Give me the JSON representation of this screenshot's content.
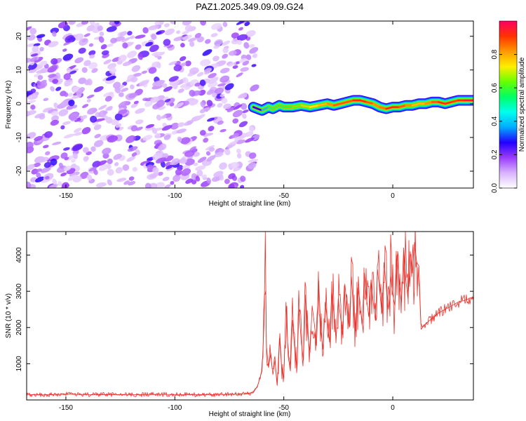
{
  "title": "PAZ1.2025.349.09.09.G24",
  "chart_data": [
    {
      "type": "heatmap",
      "title": "PAZ1.2025.349.09.09.G24",
      "xlabel": "Height of straight line (km)",
      "ylabel": "Frequency (Hz)",
      "xlim": [
        -168,
        37
      ],
      "ylim": [
        -25,
        24.5
      ],
      "xticks": [
        -150,
        -100,
        -50,
        0
      ],
      "xtick_labels": [
        "-150",
        "-100",
        "-50",
        "0"
      ],
      "yticks": [
        20,
        10,
        0,
        -10,
        -20
      ],
      "ytick_labels": [
        "20",
        "10",
        "0",
        "-10",
        "-20"
      ],
      "noise_region_x": [
        -168,
        -63
      ],
      "signal_track": {
        "x": [
          -64,
          -60,
          -57,
          -55,
          -52,
          -50,
          -46,
          -42,
          -38,
          -34,
          -30,
          -27,
          -24,
          -21,
          -18,
          -15,
          -12,
          -9,
          -6,
          -3,
          0,
          3,
          6,
          9,
          12,
          15,
          18,
          21,
          24,
          27,
          30,
          33,
          37
        ],
        "y": [
          -1,
          -2,
          -1,
          -1.5,
          -0.5,
          -1,
          -1,
          -0.5,
          -1,
          -0.5,
          0,
          -0.5,
          0,
          0.5,
          1,
          1,
          0.5,
          0,
          -1,
          -1.5,
          -1,
          -1,
          -0.5,
          -0.5,
          0,
          0,
          0.5,
          0.5,
          0,
          0.5,
          1,
          1,
          1
        ],
        "amplitude": [
          0.25,
          0.3,
          0.5,
          0.55,
          0.6,
          0.55,
          0.6,
          0.65,
          0.7,
          0.75,
          0.8,
          0.85,
          0.9,
          0.85,
          0.9,
          0.95,
          0.9,
          0.85,
          0.8,
          0.9,
          0.95,
          0.9,
          0.85,
          0.8,
          0.75,
          0.8,
          0.85,
          0.9,
          0.95,
          0.9,
          0.9,
          0.95,
          1.0
        ]
      },
      "colorbar": {
        "label": "Normalized spectral amplitude",
        "range": [
          0,
          1
        ],
        "ticks": [
          0.0,
          0.2,
          0.4,
          0.6,
          0.8
        ],
        "tick_labels": [
          "0.0",
          "0.2",
          "0.4",
          "0.6",
          "0.8"
        ],
        "colors": [
          "#ffffff",
          "#d9b3ff",
          "#9a3cff",
          "#2200ff",
          "#00aaff",
          "#00ffee",
          "#00ff66",
          "#66ff00",
          "#ffee00",
          "#ff9900",
          "#ff3300",
          "#ff0066"
        ]
      }
    },
    {
      "type": "line",
      "title": "",
      "xlabel": "Height of straight line (km)",
      "ylabel": "SNR (10 * v/v)",
      "xlim": [
        -168,
        37
      ],
      "ylim": [
        0,
        4650
      ],
      "xticks": [
        -150,
        -100,
        -50,
        0
      ],
      "xtick_labels": [
        "-150",
        "-100",
        "-50",
        "0"
      ],
      "yticks": [
        1000,
        2000,
        3000,
        4000
      ],
      "ytick_labels": [
        "1000",
        "2000",
        "3000",
        "4000"
      ],
      "color": "#e8312b",
      "series": [
        {
          "name": "SNR",
          "x": [
            -168,
            -160,
            -150,
            -140,
            -130,
            -120,
            -110,
            -100,
            -90,
            -80,
            -70,
            -64,
            -62,
            -60,
            -59,
            -58.5,
            -58,
            -57,
            -56,
            -55,
            -54,
            -53,
            -52,
            -51,
            -50,
            -49,
            -48,
            -47,
            -46,
            -45,
            -44,
            -43,
            -42,
            -41,
            -40,
            -39,
            -38,
            -37,
            -36,
            -35,
            -34,
            -33,
            -32,
            -31,
            -30,
            -29,
            -28,
            -27,
            -26,
            -25,
            -24,
            -23,
            -22,
            -21,
            -20,
            -19,
            -18,
            -17,
            -16,
            -15,
            -14,
            -13,
            -12,
            -11,
            -10,
            -9,
            -8,
            -7,
            -6,
            -5,
            -4,
            -3,
            -2,
            -1,
            0,
            1,
            2,
            3,
            4,
            5,
            6,
            7,
            8,
            9,
            10,
            11,
            12,
            13,
            15,
            18,
            21,
            24,
            27,
            30,
            33,
            37
          ],
          "y": [
            150,
            140,
            160,
            145,
            150,
            140,
            155,
            150,
            145,
            150,
            160,
            200,
            400,
            800,
            2200,
            4650,
            1500,
            900,
            1300,
            700,
            1100,
            400,
            1700,
            900,
            600,
            2700,
            1200,
            800,
            2200,
            1400,
            900,
            2500,
            1600,
            1100,
            2900,
            1800,
            1300,
            2600,
            2100,
            1500,
            3300,
            1900,
            1400,
            2700,
            2200,
            1600,
            3000,
            2400,
            1700,
            2800,
            2300,
            1800,
            3200,
            2600,
            2000,
            3400,
            2500,
            1900,
            3100,
            2700,
            2100,
            3500,
            2800,
            2300,
            3300,
            2700,
            2200,
            3600,
            3000,
            2400,
            3800,
            3100,
            2500,
            3400,
            2900,
            2600,
            4000,
            3200,
            2700,
            4200,
            3300,
            2800,
            4100,
            3500,
            4350,
            3800,
            3700,
            1950,
            2100,
            2250,
            2400,
            2500,
            2600,
            2700,
            2750,
            2850
          ]
        }
      ]
    }
  ]
}
